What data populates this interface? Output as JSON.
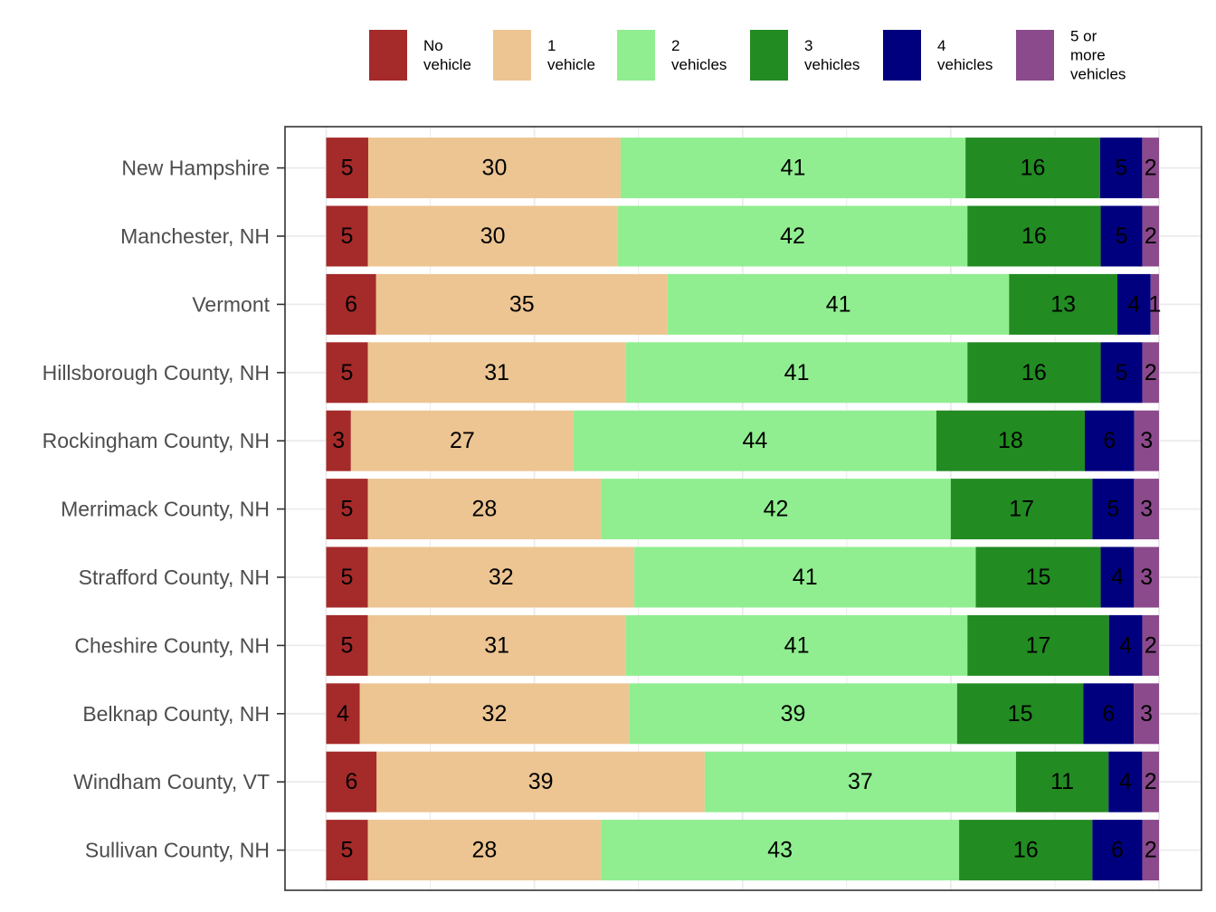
{
  "chart_data": {
    "type": "bar",
    "orientation": "horizontal",
    "stacked": true,
    "normalized": true,
    "categories": [
      "New Hampshire",
      "Manchester, NH",
      "Vermont",
      "Hillsborough County, NH",
      "Rockingham County, NH",
      "Merrimack County, NH",
      "Strafford County, NH",
      "Cheshire County, NH",
      "Belknap County, NH",
      "Windham County, VT",
      "Sullivan County, NH"
    ],
    "series": [
      {
        "name": "No\nvehicle",
        "color": "#a52a2a",
        "values": [
          5,
          5,
          6,
          5,
          3,
          5,
          5,
          5,
          4,
          6,
          5
        ]
      },
      {
        "name": "1\nvehicle",
        "color": "#edc592",
        "values": [
          30,
          30,
          35,
          31,
          27,
          28,
          32,
          31,
          32,
          39,
          28
        ]
      },
      {
        "name": "2\nvehicles",
        "color": "#90ee90",
        "values": [
          41,
          42,
          41,
          41,
          44,
          42,
          41,
          41,
          39,
          37,
          43
        ]
      },
      {
        "name": "3\nvehicles",
        "color": "#228b22",
        "values": [
          16,
          16,
          13,
          16,
          18,
          17,
          15,
          17,
          15,
          11,
          16
        ]
      },
      {
        "name": "4\nvehicles",
        "color": "#00007f",
        "values": [
          5,
          5,
          4,
          5,
          6,
          5,
          4,
          4,
          6,
          4,
          6
        ]
      },
      {
        "name": "5 or\nmore\nvehicles",
        "color": "#8b4a8b",
        "values": [
          2,
          2,
          1,
          2,
          3,
          3,
          3,
          2,
          3,
          2,
          2
        ]
      }
    ],
    "title": "",
    "xlabel": "",
    "ylabel": "",
    "grid": true,
    "legend_position": "top",
    "panel_border": true
  }
}
